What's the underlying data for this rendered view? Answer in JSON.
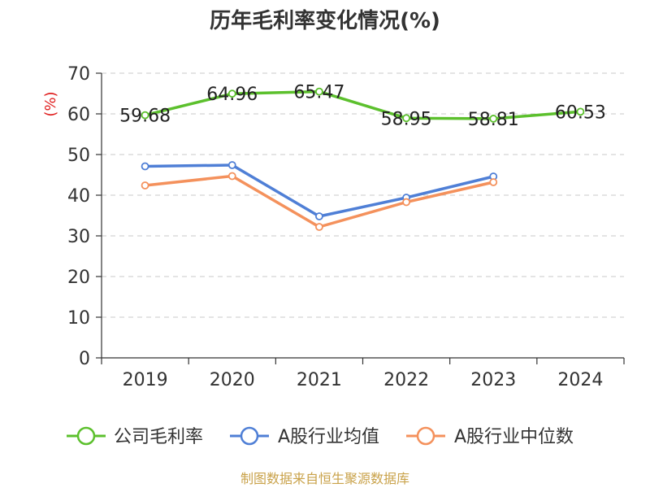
{
  "chart_data": {
    "type": "line",
    "title": "历年毛利率变化情况(%)",
    "ylabel": "(%)",
    "xlabel": "",
    "categories": [
      "2019",
      "2020",
      "2021",
      "2022",
      "2023",
      "2024"
    ],
    "ylim": [
      0,
      70
    ],
    "yticks": [
      0,
      10,
      20,
      30,
      40,
      50,
      60,
      70
    ],
    "grid": true,
    "legend_position": "bottom",
    "series": [
      {
        "name": "公司毛利率",
        "color": "#5cc02d",
        "values": [
          59.68,
          64.96,
          65.47,
          58.95,
          58.81,
          60.53
        ],
        "data_labels": [
          "59.68",
          "64.96",
          "65.47",
          "58.95",
          "58.81",
          "60.53"
        ]
      },
      {
        "name": "A股行业均值",
        "color": "#4f7fd6",
        "values": [
          47.1,
          47.4,
          34.8,
          39.4,
          44.6,
          null
        ]
      },
      {
        "name": "A股行业中位数",
        "color": "#f4915c",
        "values": [
          42.4,
          44.7,
          32.2,
          38.3,
          43.2,
          null
        ]
      }
    ]
  },
  "footer": {
    "source": "制图数据来自恒生聚源数据库"
  }
}
